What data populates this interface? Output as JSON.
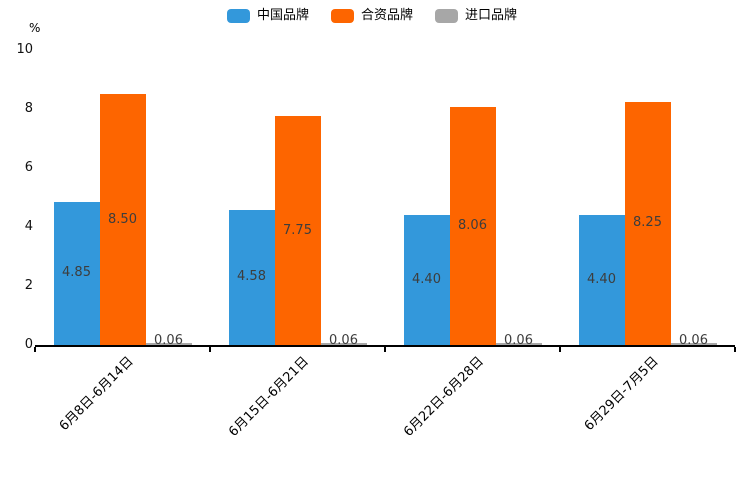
{
  "chart": {
    "unit_label": "%",
    "background": "#ffffff",
    "axis_color": "#000000",
    "bar_label_color": "#3d3d3d"
  },
  "chart_data": {
    "type": "bar",
    "title": "",
    "xlabel": "",
    "ylabel": "%",
    "ylim": [
      0,
      10
    ],
    "yticks": [
      0,
      2,
      4,
      6,
      8,
      10
    ],
    "grid": false,
    "legend_position": "top",
    "categories": [
      "6月8日-6月14日",
      "6月15日-6月21日",
      "6月22日-6月28日",
      "6月29日-7月5日"
    ],
    "series": [
      {
        "name": "中国品牌",
        "color": "#3398db",
        "values": [
          4.85,
          4.58,
          4.4,
          4.4
        ],
        "labels": [
          "4.85",
          "4.58",
          "4.40",
          "4.40"
        ]
      },
      {
        "name": "合资品牌",
        "color": "#fd6500",
        "values": [
          8.5,
          7.75,
          8.06,
          8.25
        ],
        "labels": [
          "8.50",
          "7.75",
          "8.06",
          "8.25"
        ]
      },
      {
        "name": "进口品牌",
        "color": "#a7a7a7",
        "values": [
          0.06,
          0.06,
          0.06,
          0.06
        ],
        "labels": [
          "0.06",
          "0.06",
          "0.06",
          "0.06"
        ]
      }
    ]
  }
}
